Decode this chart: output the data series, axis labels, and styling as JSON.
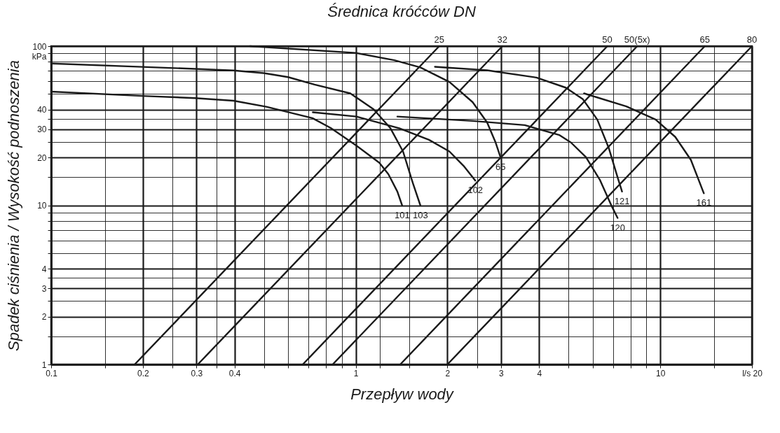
{
  "chart_data": {
    "type": "line",
    "title": "Średnica króćców DN",
    "xlabel": "Przepływ wody",
    "ylabel": "Spadek ciśnienia / Wysokość podnoszenia",
    "log": "xy",
    "grid": true,
    "xlim": [
      0.1,
      20
    ],
    "ylim": [
      1,
      100
    ],
    "xticks": [
      0.1,
      {
        "value": 0.15,
        "label": null
      },
      0.2,
      {
        "value": 0.25,
        "label": null
      },
      0.3,
      {
        "value": 0.35,
        "label": null
      },
      0.4,
      {
        "value": 0.5,
        "label": null
      },
      {
        "value": 0.6,
        "label": null
      },
      {
        "value": 0.7,
        "label": null
      },
      {
        "value": 0.8,
        "label": null
      },
      {
        "value": 0.9,
        "label": null
      },
      1,
      {
        "value": 1.2,
        "label": null
      },
      {
        "value": 1.5,
        "label": null
      },
      2,
      {
        "value": 2.5,
        "label": null
      },
      3,
      4,
      {
        "value": 5,
        "label": null
      },
      {
        "value": 6,
        "label": null
      },
      {
        "value": 7,
        "label": null
      },
      {
        "value": 8,
        "label": null
      },
      {
        "value": 9,
        "label": null
      },
      10,
      {
        "value": 15,
        "label": null
      },
      {
        "value": 20,
        "label": "l/s 20"
      }
    ],
    "yticks": [
      1,
      {
        "value": 1.5,
        "label": null
      },
      2,
      {
        "value": 2.5,
        "label": null
      },
      3,
      {
        "value": 3.5,
        "label": null
      },
      4,
      {
        "value": 5,
        "label": null
      },
      {
        "value": 6,
        "label": null
      },
      {
        "value": 7,
        "label": null
      },
      {
        "value": 8,
        "label": null
      },
      {
        "value": 9,
        "label": null
      },
      10,
      {
        "value": 15,
        "label": null
      },
      20,
      {
        "value": 25,
        "label": null
      },
      30,
      {
        "value": 35,
        "label": null
      },
      40,
      {
        "value": 50,
        "label": null
      },
      {
        "value": 60,
        "label": null
      },
      {
        "value": 70,
        "label": null
      },
      {
        "value": 80,
        "label": null
      },
      {
        "value": 90,
        "label": null
      },
      {
        "value": 100,
        "label": "100\nkPa"
      }
    ],
    "series": [
      {
        "name": "25",
        "color": "#1a1a1a",
        "x": [
          0.188,
          1.88
        ],
        "values": [
          1,
          100
        ]
      },
      {
        "name": "32",
        "color": "#1a1a1a",
        "x": [
          0.303,
          3.03
        ],
        "values": [
          1,
          100
        ]
      },
      {
        "name": "50",
        "color": "#1a1a1a",
        "x": [
          0.67,
          6.7
        ],
        "values": [
          1,
          100
        ]
      },
      {
        "name": "50(5x)",
        "color": "#1a1a1a",
        "x": [
          0.84,
          8.4
        ],
        "values": [
          1,
          100
        ]
      },
      {
        "name": "65",
        "color": "#1a1a1a",
        "x": [
          1.4,
          14
        ],
        "values": [
          1,
          100
        ]
      },
      {
        "name": "80",
        "color": "#1a1a1a",
        "x": [
          2,
          20
        ],
        "values": [
          1,
          100
        ]
      },
      {
        "name": "101",
        "color": "#1a1a1a",
        "x": [
          0.1,
          0.199,
          0.297,
          0.397,
          0.509,
          0.721,
          0.828,
          1.0,
          1.196,
          1.28,
          1.37,
          1.42
        ],
        "values": [
          51.8,
          48.7,
          47.2,
          45.4,
          41.6,
          35.3,
          30.6,
          23.9,
          18.5,
          15.7,
          12.2,
          10
        ]
      },
      {
        "name": "103",
        "color": "#1a1a1a",
        "x": [
          0.1,
          0.199,
          0.297,
          0.397,
          0.499,
          0.6,
          0.732,
          0.96,
          1.145,
          1.3,
          1.43,
          1.54,
          1.63
        ],
        "values": [
          77.8,
          74.1,
          72.0,
          70.3,
          67.7,
          63.9,
          57.4,
          50.5,
          40.1,
          30.5,
          21.8,
          13.8,
          10
        ]
      },
      {
        "name": "102",
        "color": "#1a1a1a",
        "x": [
          0.723,
          1.005,
          1.39,
          1.74,
          2.03,
          2.26,
          2.47
        ],
        "values": [
          38.4,
          36.1,
          30.5,
          25.8,
          21.8,
          17.7,
          14.3
        ]
      },
      {
        "name": "65",
        "color": "#1a1a1a",
        "x": [
          0.45,
          1.0,
          1.34,
          1.63,
          2.03,
          2.42,
          2.7,
          2.88,
          2.99
        ],
        "values": [
          100,
          90.7,
          81.6,
          73.5,
          59.6,
          44.5,
          33.2,
          24.8,
          20.0
        ]
      },
      {
        "name": "120",
        "color": "#1a1a1a",
        "x": [
          1.37,
          2.42,
          3.59,
          4.67,
          5.09,
          5.7,
          6.34,
          6.93,
          7.24
        ],
        "values": [
          36.1,
          33.9,
          31.9,
          27.6,
          24.8,
          20.1,
          14.4,
          9.86,
          8.33
        ]
      },
      {
        "name": "121",
        "color": "#1a1a1a",
        "x": [
          1.82,
          2.7,
          3.92,
          4.89,
          5.57,
          6.21,
          6.78,
          7.24,
          7.49
        ],
        "values": [
          74.2,
          70.5,
          63.5,
          54.9,
          46.4,
          34.6,
          22.8,
          15.0,
          12.2
        ]
      },
      {
        "name": "161",
        "color": "#1a1a1a",
        "x": [
          5.62,
          7.74,
          9.65,
          11.2,
          12.6,
          13.9
        ],
        "values": [
          50.5,
          41.8,
          34.6,
          26.9,
          19.3,
          11.9
        ]
      }
    ]
  }
}
